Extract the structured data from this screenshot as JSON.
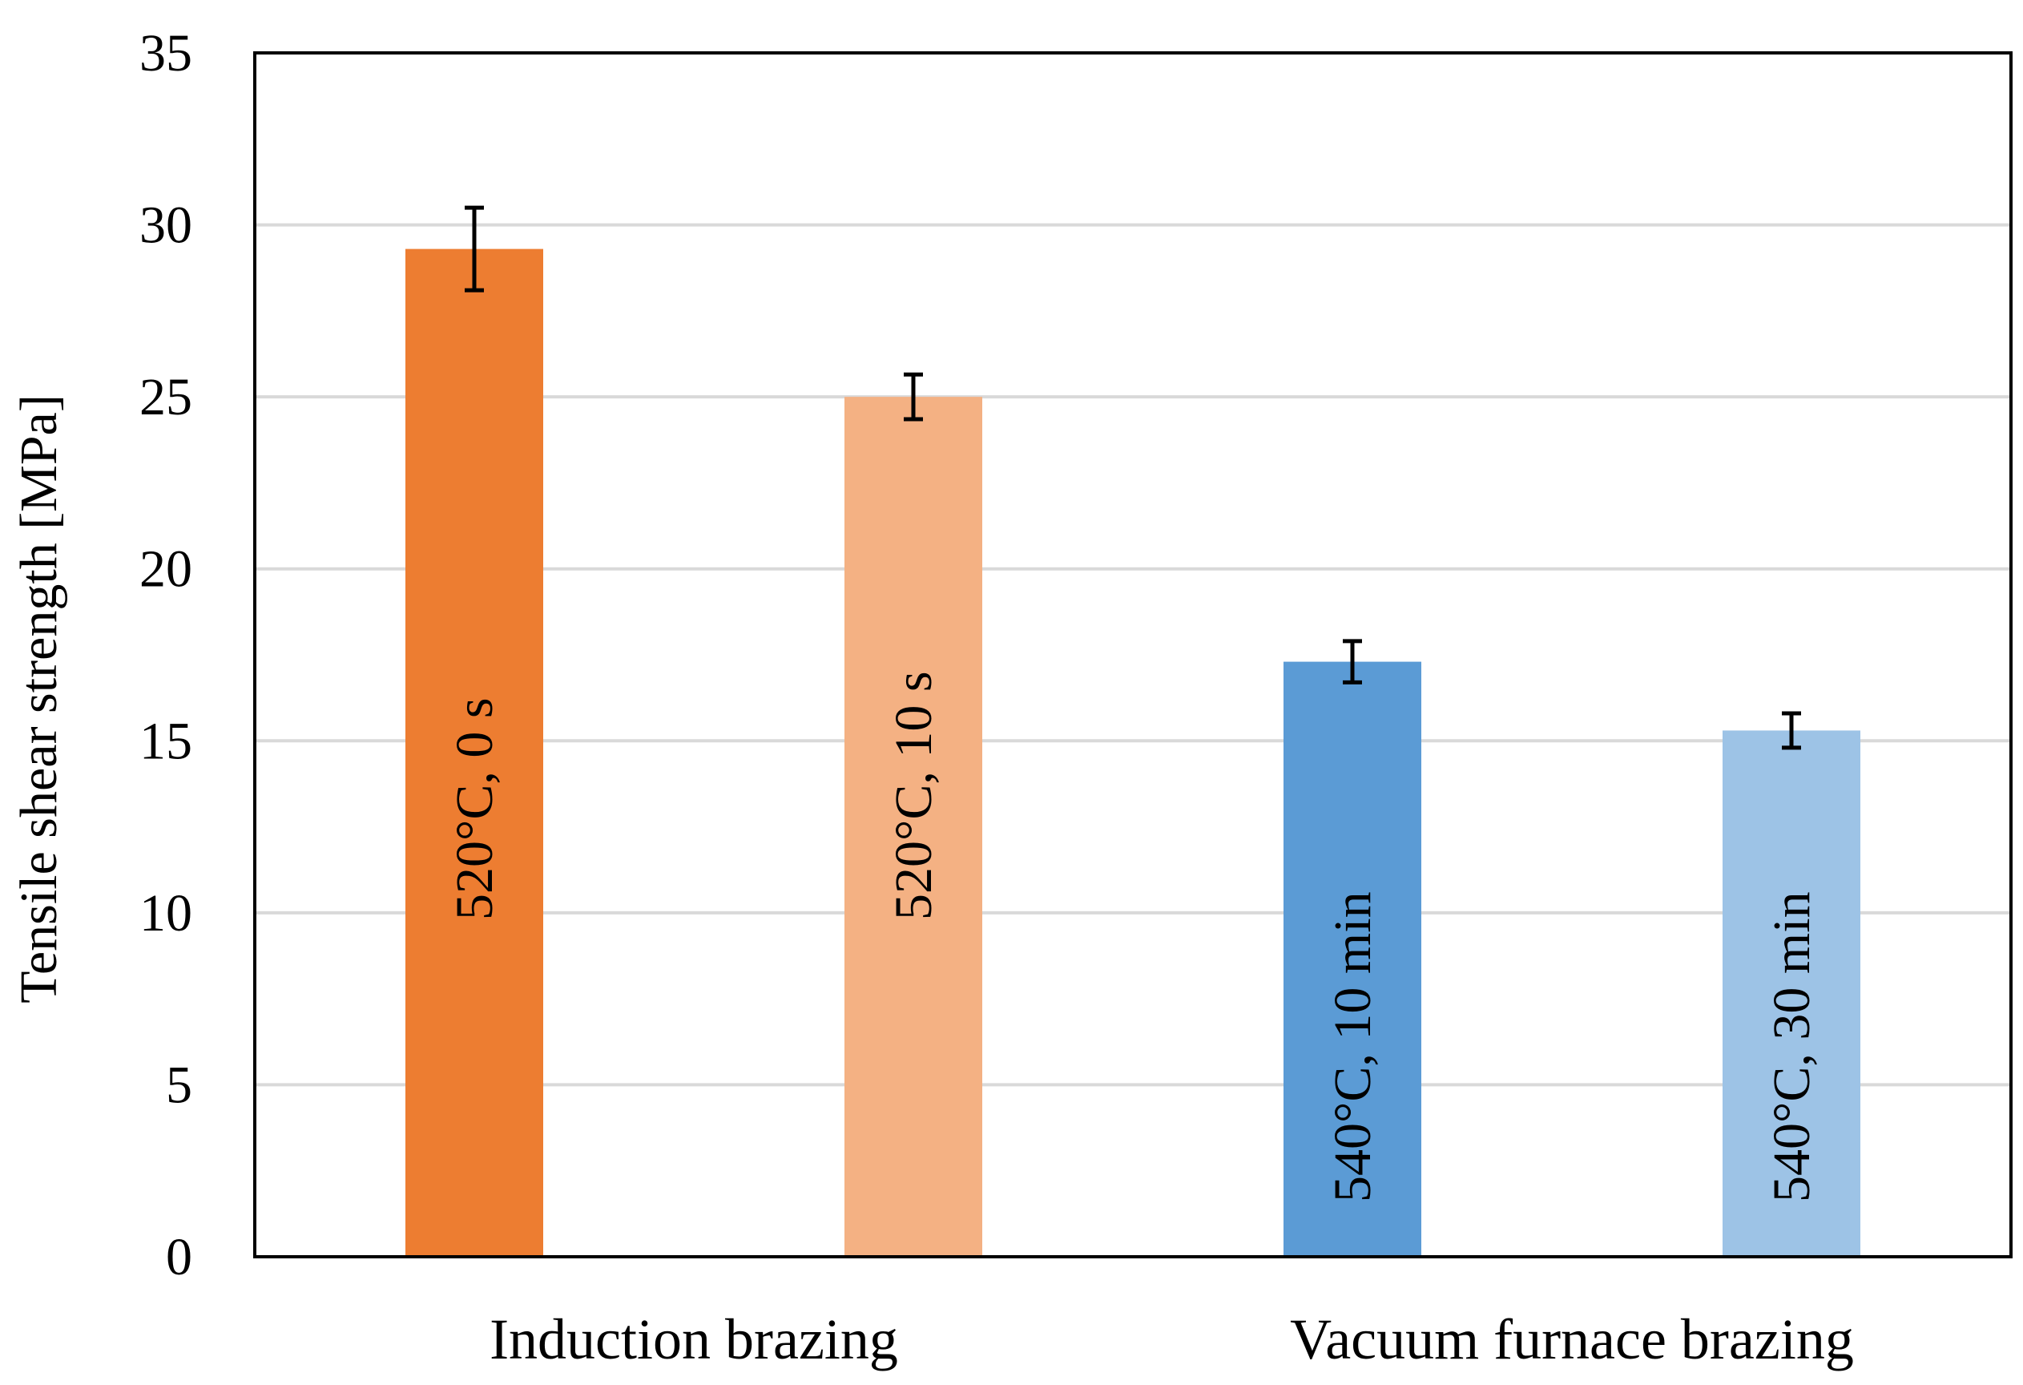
{
  "chart_data": {
    "type": "bar",
    "title": "",
    "xlabel": "",
    "ylabel": "Tensile shear strength [MPa]",
    "ylim": [
      0,
      35
    ],
    "yticks": [
      0,
      5,
      10,
      15,
      20,
      25,
      30,
      35
    ],
    "ytick_labels": [
      "0",
      "5",
      "10",
      "15",
      "20",
      "25",
      "30",
      "35"
    ],
    "grid": true,
    "groups": [
      "Induction brazing",
      "Vacuum furnace brazing"
    ],
    "bars": [
      {
        "label": "520°C, 0 s",
        "group": "Induction brazing",
        "value": 29.3,
        "error": 1.2,
        "color": "#ED7D31"
      },
      {
        "label": "520°C, 10 s",
        "group": "Induction brazing",
        "value": 25.0,
        "error": 0.65,
        "color": "#F4B183"
      },
      {
        "label": "540°C, 10 min",
        "group": "Vacuum furnace brazing",
        "value": 17.3,
        "error": 0.6,
        "color": "#5B9BD5"
      },
      {
        "label": "540°C, 30 min",
        "group": "Vacuum furnace brazing",
        "value": 15.3,
        "error": 0.5,
        "color": "#9DC3E6"
      }
    ],
    "colors": {
      "grid": "#D9D9D9",
      "frame": "#000000",
      "errorbar": "#000000"
    }
  }
}
